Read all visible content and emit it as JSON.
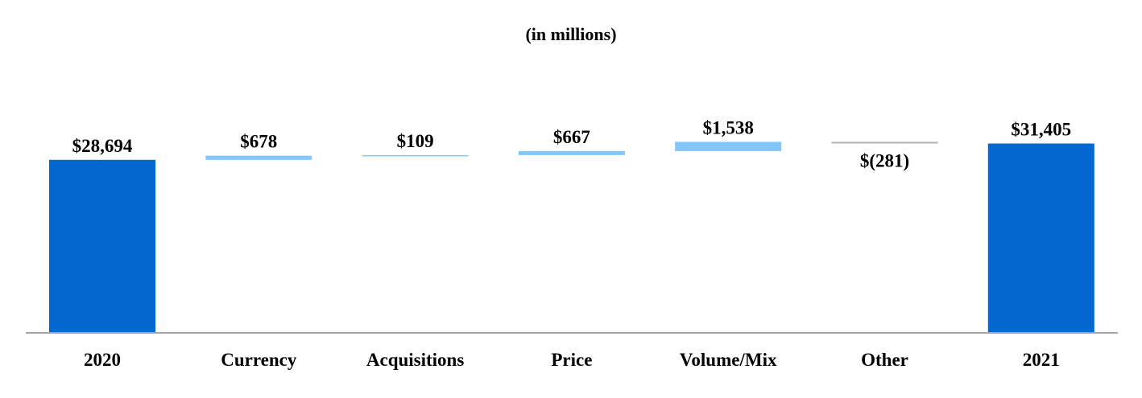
{
  "chart_data": {
    "type": "bar",
    "subtype": "waterfall",
    "title": "(in millions)",
    "xlabel": "",
    "ylabel": "",
    "unit": "$ millions",
    "ylim": [
      0,
      36000
    ],
    "grid": false,
    "legend": "none",
    "categories": [
      "2020",
      "Currency",
      "Acquisitions",
      "Price",
      "Volume/Mix",
      "Other",
      "2021"
    ],
    "steps": [
      {
        "category": "2020",
        "kind": "total",
        "value": 28694,
        "label": "$28,694"
      },
      {
        "category": "Currency",
        "kind": "increase",
        "value": 678,
        "label": "$678"
      },
      {
        "category": "Acquisitions",
        "kind": "increase",
        "value": 109,
        "label": "$109"
      },
      {
        "category": "Price",
        "kind": "increase",
        "value": 667,
        "label": "$667"
      },
      {
        "category": "Volume/Mix",
        "kind": "increase",
        "value": 1538,
        "label": "$1,538"
      },
      {
        "category": "Other",
        "kind": "decrease",
        "value": -281,
        "label": "$(281)"
      },
      {
        "category": "2021",
        "kind": "total",
        "value": 31405,
        "label": "$31,405"
      }
    ],
    "colors": {
      "total": "#0369D0",
      "increase": "#82C6FA",
      "decrease": "#B3B3B3",
      "axis": "#A6A6A6"
    }
  }
}
